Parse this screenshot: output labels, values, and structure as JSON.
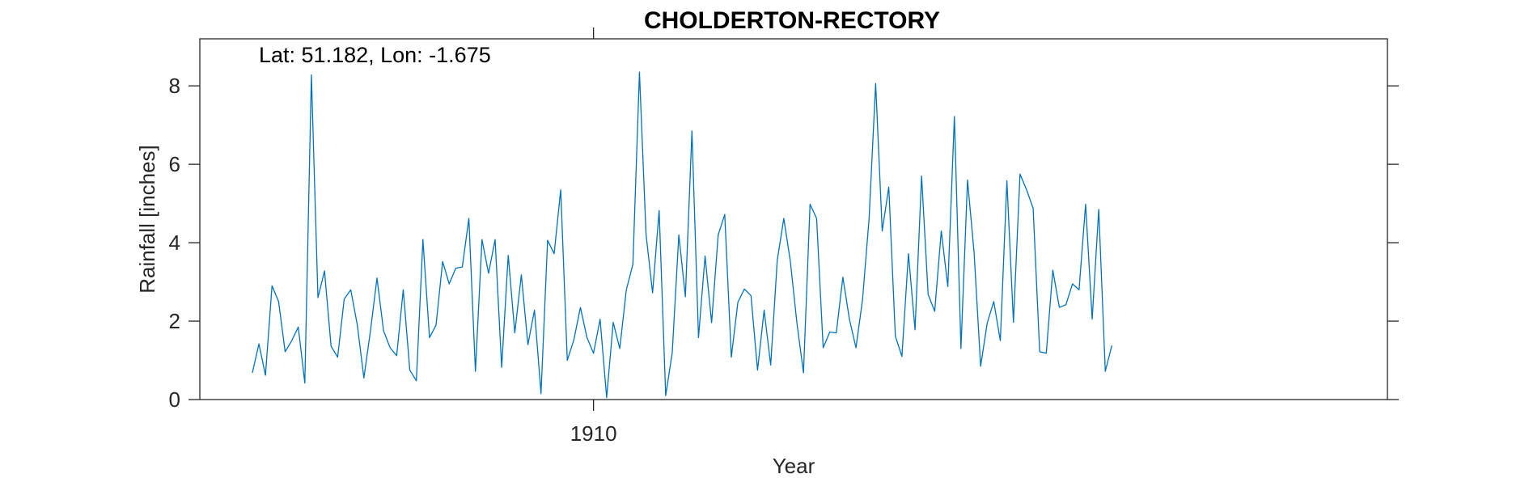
{
  "chart_data": {
    "type": "line",
    "title": "CHOLDERTON-RECTORY",
    "annotation": "Lat: 51.182, Lon: -1.675",
    "xlabel": "Year",
    "ylabel": "Rainfall [inches]",
    "xticks": [
      {
        "value": 1910,
        "label": "1910"
      }
    ],
    "yticks": [
      {
        "value": 0,
        "label": "0"
      },
      {
        "value": 2,
        "label": "2"
      },
      {
        "value": 4,
        "label": "4"
      },
      {
        "value": 6,
        "label": "6"
      },
      {
        "value": 8,
        "label": "8"
      }
    ],
    "ylim": [
      0,
      9.2
    ],
    "xlim": [
      1905,
      1920.083
    ],
    "grid": false,
    "line_color": "#0072BD",
    "series": [
      {
        "name": "",
        "x_start": 1905.667,
        "x_step": 0.08333,
        "values": [
          0.68,
          1.42,
          0.62,
          2.9,
          2.5,
          1.22,
          1.5,
          1.85,
          0.42,
          8.28,
          2.6,
          3.28,
          1.36,
          1.08,
          2.56,
          2.8,
          1.9,
          0.55,
          1.75,
          3.1,
          1.75,
          1.32,
          1.12,
          2.8,
          0.75,
          0.48,
          4.08,
          1.58,
          1.9,
          3.52,
          2.95,
          3.35,
          3.38,
          4.62,
          0.72,
          4.08,
          3.22,
          4.08,
          0.82,
          3.68,
          1.7,
          3.18,
          1.4,
          2.28,
          0.15,
          4.06,
          3.72,
          5.35,
          1.0,
          1.52,
          2.35,
          1.58,
          1.18,
          2.05,
          0.05,
          1.97,
          1.3,
          2.8,
          3.45,
          8.35,
          4.22,
          2.72,
          4.82,
          0.1,
          1.2,
          4.2,
          2.62,
          6.85,
          1.58,
          3.66,
          1.96,
          4.2,
          4.72,
          1.08,
          2.48,
          2.82,
          2.65,
          0.75,
          2.28,
          0.88,
          3.55,
          4.62,
          3.52,
          1.95,
          0.68,
          4.98,
          4.62,
          1.32,
          1.72,
          1.7,
          3.12,
          2.05,
          1.32,
          2.55,
          4.62,
          8.06,
          4.3,
          5.42,
          1.62,
          1.1,
          3.72,
          1.78,
          5.7,
          2.68,
          2.25,
          4.3,
          2.88,
          7.22,
          1.3,
          5.6,
          3.75,
          0.85,
          1.95,
          2.5,
          1.5,
          5.58,
          1.97,
          5.75,
          5.35,
          4.88,
          1.22,
          1.18,
          3.3,
          2.35,
          2.42,
          2.95,
          2.8,
          4.98,
          2.05,
          4.85,
          0.72,
          1.38
        ]
      }
    ]
  }
}
